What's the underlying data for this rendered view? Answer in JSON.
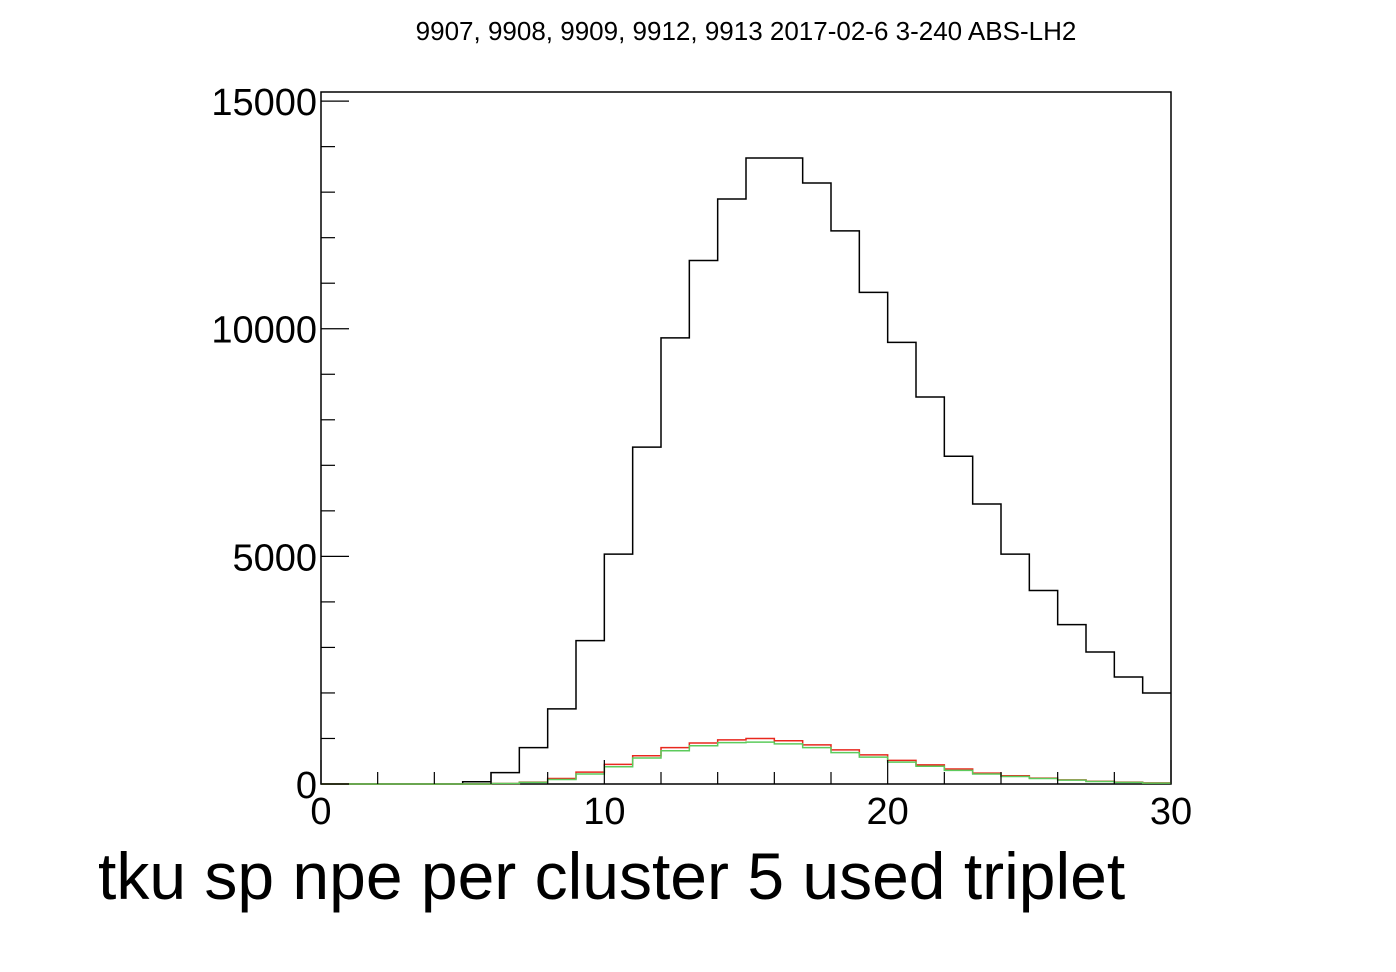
{
  "chart_data": {
    "type": "histogram",
    "title": "9907, 9908, 9909, 9912, 9913 2017-02-6 3-240 ABS-LH2",
    "xlabel": "tku sp npe per cluster 5 used triplet",
    "ylabel": "",
    "xlim": [
      0,
      30
    ],
    "ylim": [
      0,
      15200
    ],
    "bin_width": 1,
    "x_ticks": [
      0,
      10,
      20,
      30
    ],
    "y_ticks": [
      0,
      5000,
      10000,
      15000
    ],
    "grid": false,
    "series": [
      {
        "color": "#000000",
        "values": [
          0,
          0,
          0,
          0,
          0,
          50,
          250,
          800,
          1650,
          3150,
          5050,
          7400,
          9800,
          11500,
          12850,
          13750,
          13750,
          13200,
          12150,
          10800,
          9700,
          8500,
          7200,
          6150,
          5050,
          4250,
          3500,
          2900,
          2350,
          2000
        ]
      },
      {
        "color": "#e8281e",
        "values": [
          0,
          0,
          0,
          0,
          0,
          0,
          10,
          40,
          120,
          260,
          430,
          620,
          800,
          900,
          970,
          1000,
          950,
          860,
          750,
          640,
          520,
          420,
          330,
          240,
          180,
          130,
          90,
          60,
          40,
          25
        ]
      },
      {
        "color": "#5ccb5c",
        "values": [
          0,
          0,
          0,
          0,
          0,
          0,
          10,
          35,
          100,
          220,
          380,
          570,
          730,
          840,
          910,
          920,
          880,
          800,
          690,
          590,
          480,
          390,
          300,
          220,
          165,
          120,
          85,
          55,
          35,
          20
        ]
      }
    ]
  }
}
